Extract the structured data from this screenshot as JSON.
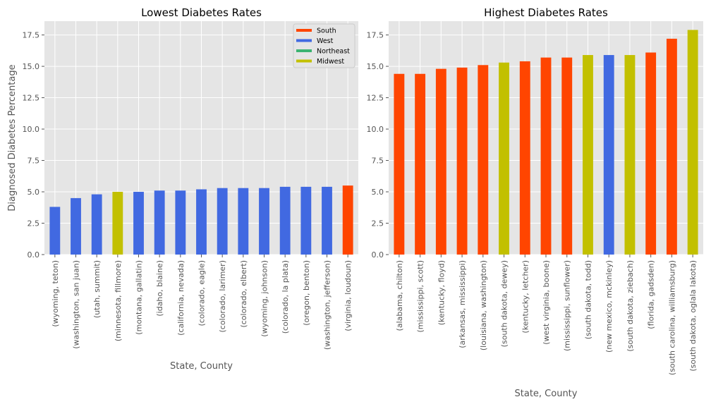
{
  "colors": {
    "South": "#ff4500",
    "West": "#4169e1",
    "Northeast": "#3cb371",
    "Midwest": "#c2c000",
    "plot_bg": "#e5e5e5",
    "grid": "#ffffff"
  },
  "chart_data": [
    {
      "type": "bar",
      "title": "Lowest Diabetes Rates",
      "xlabel": "State, County",
      "ylabel": "Diagnosed Diabetes Percentage",
      "ylim": [
        0,
        18.6
      ],
      "yticks": [
        0.0,
        2.5,
        5.0,
        7.5,
        10.0,
        12.5,
        15.0,
        17.5
      ],
      "ytick_labels": [
        "0.0",
        "2.5",
        "5.0",
        "7.5",
        "10.0",
        "12.5",
        "15.0",
        "17.5"
      ],
      "grid": true,
      "legend": {
        "placement": "top-right",
        "entries": [
          "South",
          "West",
          "Northeast",
          "Midwest"
        ]
      },
      "categories": [
        "(wyoming, teton)",
        "(washington, san juan)",
        "(utah, summit)",
        "(minnesota, fillmore)",
        "(montana, gallatin)",
        "(idaho, blaine)",
        "(california, nevada)",
        "(colorado, eagle)",
        "(colorado, larimer)",
        "(colorado, elbert)",
        "(wyoming, johnson)",
        "(colorado, la plata)",
        "(oregon, benton)",
        "(washington, jefferson)",
        "(virginia, loudoun)"
      ],
      "values": [
        3.8,
        4.5,
        4.8,
        5.0,
        5.0,
        5.1,
        5.1,
        5.2,
        5.3,
        5.3,
        5.3,
        5.4,
        5.4,
        5.4,
        5.5
      ],
      "regions": [
        "West",
        "West",
        "West",
        "Midwest",
        "West",
        "West",
        "West",
        "West",
        "West",
        "West",
        "West",
        "West",
        "West",
        "West",
        "South"
      ]
    },
    {
      "type": "bar",
      "title": "Highest Diabetes Rates",
      "xlabel": "State, County",
      "ylabel": "",
      "ylim": [
        0,
        18.6
      ],
      "yticks": [
        0.0,
        2.5,
        5.0,
        7.5,
        10.0,
        12.5,
        15.0,
        17.5
      ],
      "ytick_labels": [
        "0.0",
        "2.5",
        "5.0",
        "7.5",
        "10.0",
        "12.5",
        "15.0",
        "17.5"
      ],
      "grid": true,
      "categories": [
        "(alabama, chilton)",
        "(mississippi, scott)",
        "(kentucky, floyd)",
        "(arkansas, mississippi)",
        "(louisiana, washington)",
        "(south dakota, dewey)",
        "(kentucky, letcher)",
        "(west virginia, boone)",
        "(mississippi, sunflower)",
        "(south dakota, todd)",
        "(new mexico, mckinley)",
        "(south dakota, ziebach)",
        "(florida, gadsden)",
        "(south carolina, williamsburg)",
        "(south dakota, oglala lakota)"
      ],
      "values": [
        14.4,
        14.4,
        14.8,
        14.9,
        15.1,
        15.3,
        15.4,
        15.7,
        15.7,
        15.9,
        15.9,
        15.9,
        16.1,
        17.2,
        17.9
      ],
      "regions": [
        "South",
        "South",
        "South",
        "South",
        "South",
        "Midwest",
        "South",
        "South",
        "South",
        "Midwest",
        "West",
        "Midwest",
        "South",
        "South",
        "Midwest"
      ]
    }
  ]
}
